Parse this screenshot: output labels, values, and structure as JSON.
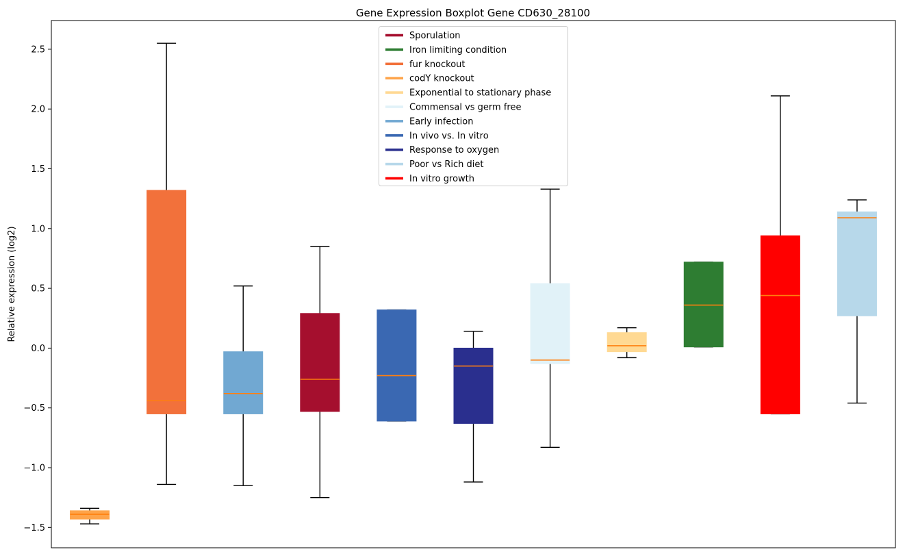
{
  "chart_data": {
    "type": "boxplot",
    "title": "Gene Expression Boxplot Gene CD630_28100",
    "ylabel": "Relative expression (log2)",
    "ylim": [
      -1.67,
      2.74
    ],
    "grid": false,
    "legend_position": "top-center",
    "median_color": "#ff7f0e",
    "whisker_color": "#000000",
    "yticks": [
      {
        "value": -1.5,
        "label": "−1.5"
      },
      {
        "value": -1.0,
        "label": "−1.0"
      },
      {
        "value": -0.5,
        "label": "−0.5"
      },
      {
        "value": 0.0,
        "label": "0.0"
      },
      {
        "value": 0.5,
        "label": "0.5"
      },
      {
        "value": 1.0,
        "label": "1.0"
      },
      {
        "value": 1.5,
        "label": "1.5"
      },
      {
        "value": 2.0,
        "label": "2.0"
      },
      {
        "value": 2.5,
        "label": "2.5"
      }
    ],
    "legend": [
      "Sporulation",
      "Iron limiting condition",
      "fur knockout",
      "codY knockout",
      "Exponential to stationary phase",
      "Commensal vs germ free",
      "Early infection",
      "In vivo vs. In vitro",
      "Response to oxygen",
      "Poor vs Rich diet",
      "In vitro growth"
    ],
    "series": [
      {
        "name": "codY knockout",
        "color": "#fea44a",
        "whislo": -1.47,
        "q1": -1.43,
        "med": -1.39,
        "q3": -1.36,
        "whishi": -1.34
      },
      {
        "name": "fur knockout",
        "color": "#f2713b",
        "whislo": -1.14,
        "q1": -0.55,
        "med": -0.44,
        "q3": 1.32,
        "whishi": 2.55
      },
      {
        "name": "Early infection",
        "color": "#71a8d2",
        "whislo": -1.15,
        "q1": -0.55,
        "med": -0.38,
        "q3": -0.03,
        "whishi": 0.52
      },
      {
        "name": "Sporulation",
        "color": "#a50f2e",
        "whislo": -1.25,
        "q1": -0.53,
        "med": -0.26,
        "q3": 0.29,
        "whishi": 0.85
      },
      {
        "name": "In vivo vs. In vitro",
        "color": "#3a68b2",
        "whislo": -0.61,
        "q1": -0.61,
        "med": -0.23,
        "q3": 0.32,
        "whishi": 0.32
      },
      {
        "name": "Response to oxygen",
        "color": "#2a2f8e",
        "whislo": -1.12,
        "q1": -0.63,
        "med": -0.15,
        "q3": 0.0,
        "whishi": 0.14
      },
      {
        "name": "Commensal vs germ free",
        "color": "#e1f2f8",
        "whislo": -0.83,
        "q1": -0.13,
        "med": -0.1,
        "q3": 0.54,
        "whishi": 1.33
      },
      {
        "name": "Exponential to stationary phase",
        "color": "#ffd993",
        "whislo": -0.08,
        "q1": -0.03,
        "med": 0.02,
        "q3": 0.13,
        "whishi": 0.17
      },
      {
        "name": "Iron limiting condition",
        "color": "#2e7d32",
        "whislo": 0.01,
        "q1": 0.01,
        "med": 0.36,
        "q3": 0.72,
        "whishi": 0.72
      },
      {
        "name": "In vitro growth",
        "color": "#ff0000",
        "whislo": -0.55,
        "q1": -0.55,
        "med": 0.44,
        "q3": 0.94,
        "whishi": 2.11
      },
      {
        "name": "Poor vs Rich diet",
        "color": "#b7d8ea",
        "whislo": -0.46,
        "q1": 0.27,
        "med": 1.09,
        "q3": 1.14,
        "whishi": 1.24
      }
    ]
  }
}
